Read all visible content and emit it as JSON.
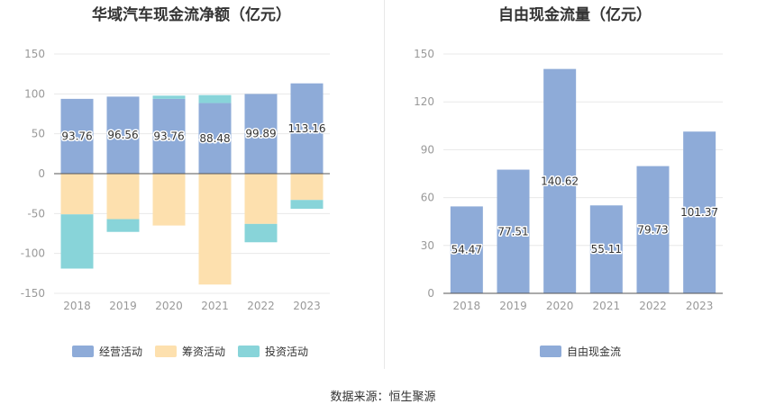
{
  "colors": {
    "operating": "#8eabd8",
    "financing": "#fde0ae",
    "investing": "#88d4d9",
    "fcf": "#8eabd8",
    "grid": "#e8e8e8",
    "axis": "#999999",
    "zero": "#555555"
  },
  "chart_data": [
    {
      "type": "bar",
      "stacked": true,
      "title": "华域汽车现金流净额（亿元）",
      "categories": [
        "2018",
        "2019",
        "2020",
        "2021",
        "2022",
        "2023"
      ],
      "series": [
        {
          "name": "经营活动",
          "values": [
            93.76,
            96.56,
            93.76,
            88.48,
            99.89,
            113.16
          ]
        },
        {
          "name": "筹资活动",
          "values": [
            -51,
            -57,
            -65,
            -139,
            -63,
            -33
          ]
        },
        {
          "name": "投资活动",
          "values": [
            -68,
            -16,
            4,
            10,
            -23,
            -11
          ]
        }
      ],
      "data_labels": [
        "93.76",
        "96.56",
        "93.76",
        "88.48",
        "99.89",
        "113.16"
      ],
      "ylim": [
        -150,
        150
      ],
      "yticks": [
        -150,
        -100,
        -50,
        0,
        50,
        100,
        150
      ],
      "grid": true,
      "legend": "bottom"
    },
    {
      "type": "bar",
      "title": "自由现金流量（亿元）",
      "categories": [
        "2018",
        "2019",
        "2020",
        "2021",
        "2022",
        "2023"
      ],
      "series": [
        {
          "name": "自由现金流",
          "values": [
            54.47,
            77.51,
            140.62,
            55.11,
            79.73,
            101.37
          ]
        }
      ],
      "data_labels": [
        "54.47",
        "77.51",
        "140.62",
        "55.11",
        "79.73",
        "101.37"
      ],
      "ylim": [
        0,
        150
      ],
      "yticks": [
        0,
        30,
        60,
        90,
        120,
        150
      ],
      "grid": true,
      "legend": "bottom"
    }
  ],
  "source": "数据来源：恒生聚源"
}
